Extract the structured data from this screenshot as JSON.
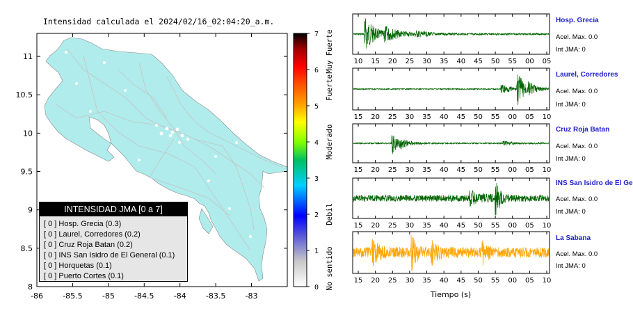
{
  "map_title": "Intensidad calculada el 2024/02/16_02:04:20_a.m.",
  "legend": {
    "title": "INTENSIDAD JMA [0 a 7]",
    "rows": [
      "[ 0 ]  Hosp. Grecia (0.3)",
      "[ 0 ]  Laurel, Corredores (0.2)",
      "[ 0 ]  Cruz Roja Batan (0.2)",
      "[ 0 ]  INS San Isidro de El General (0.1)",
      "[ 0 ]  Horquetas (0.1)",
      "[ 0 ]  Puerto Cortes (0.1)"
    ]
  },
  "colorbar": {
    "ticks": [
      "0",
      "1",
      "2",
      "3",
      "4",
      "5",
      "6",
      "7"
    ],
    "categories": [
      "No sentido",
      "Debil",
      "Moderado",
      "Fuerte",
      "Muy Fuerte"
    ]
  },
  "colors": {
    "land": "#b0ecec",
    "wave_green": "#006400",
    "wave_orange": "#ffa500",
    "station_blue": "#1f1fcf"
  },
  "chart_data": [
    {
      "type": "map",
      "x_ticks": [
        "-86",
        "-85.5",
        "-85",
        "-84.5",
        "-84",
        "-83.5",
        "-83"
      ],
      "y_ticks": [
        "8",
        "8.5",
        "9",
        "9.5",
        "10",
        "10.5",
        "11"
      ],
      "xlim": [
        -86,
        -82.5
      ],
      "ylim": [
        8,
        11.3
      ]
    },
    {
      "type": "line",
      "xlabel": "Tiempo (s)",
      "panels": [
        {
          "name": "Hosp. Grecia",
          "acel": "Acel. Max. 0.0",
          "jma": "Int JMA: 0",
          "ticks": [
            "10",
            "15",
            "20",
            "25",
            "30",
            "35",
            "40",
            "45",
            "50",
            "55",
            "00",
            "05"
          ]
        },
        {
          "name": "Laurel, Corredores",
          "acel": "Acel. Max. 0.0",
          "jma": "Int JMA: 0",
          "ticks": [
            "15",
            "20",
            "25",
            "30",
            "35",
            "40",
            "45",
            "50",
            "55",
            "00",
            "05",
            "10"
          ]
        },
        {
          "name": "Cruz Roja Batan",
          "acel": "Acel. Max. 0.0",
          "jma": "Int JMA: 0",
          "ticks": [
            "15",
            "20",
            "25",
            "30",
            "35",
            "40",
            "45",
            "50",
            "55",
            "00",
            "05",
            "10"
          ]
        },
        {
          "name": "INS San Isidro de El Ge",
          "acel": "Acel. Max. 0.0",
          "jma": "Int JMA: 0",
          "ticks": [
            "15",
            "20",
            "25",
            "30",
            "35",
            "40",
            "45",
            "50",
            "55",
            "00",
            "05",
            "10"
          ]
        },
        {
          "name": "La Sabana",
          "acel": "Acel. Max. 0.0",
          "jma": "Int JMA: 0",
          "ticks": [
            "15",
            "20",
            "25",
            "30",
            "35",
            "40",
            "45",
            "50",
            "55",
            "00",
            "05",
            "10"
          ]
        }
      ]
    }
  ]
}
